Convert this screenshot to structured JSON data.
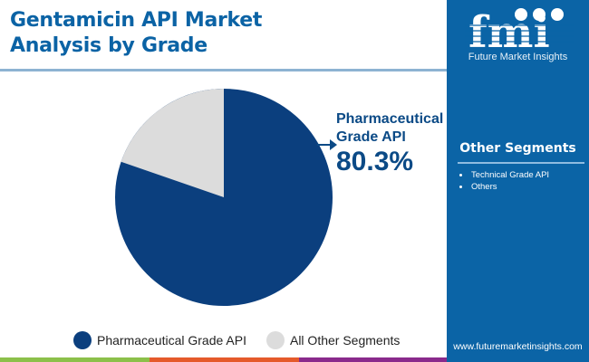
{
  "header": {
    "title_line1": "Gentamicin API Market",
    "title_line2": "Analysis by Grade"
  },
  "callout": {
    "label_line1": "Pharmaceutical",
    "label_line2": "Grade API",
    "value": "80.3%"
  },
  "legend": {
    "items": [
      {
        "label": "Pharmaceutical Grade API",
        "color": "#0b3f7e"
      },
      {
        "label": "All Other Segments",
        "color": "#dcdcdc"
      }
    ]
  },
  "sidebar": {
    "logo_text": "Future Market Insights",
    "heading": "Other Segments",
    "items": [
      "Technical Grade API",
      "Others"
    ],
    "url": "www.futuremarketinsights.com"
  },
  "colors": {
    "title": "#0b63a5",
    "primary_slice": "#0b3f7e",
    "other_slice": "#dcdcdc",
    "panel": "#0b64a6",
    "stripe_green": "#8cc04a",
    "stripe_orange": "#e55a2b",
    "stripe_purple": "#8a2a8c"
  },
  "chart_data": {
    "type": "pie",
    "title": "Gentamicin API Market Analysis by Grade",
    "categories": [
      "Pharmaceutical Grade API",
      "All Other Segments"
    ],
    "values": [
      80.3,
      19.7
    ],
    "unit": "%",
    "annotations": [
      {
        "label": "Pharmaceutical Grade API",
        "value": "80.3%"
      }
    ],
    "legend_position": "bottom"
  }
}
